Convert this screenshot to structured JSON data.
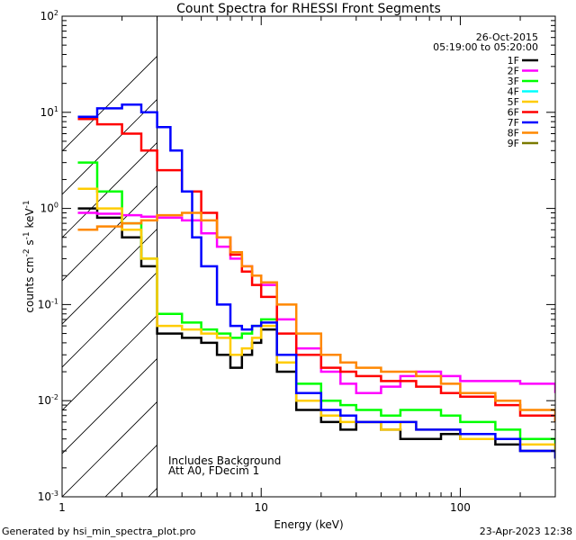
{
  "chart_data": {
    "type": "line",
    "title": "Count Spectra for RHESSI Front Segments",
    "xlabel": "Energy (keV)",
    "ylabel_base": "counts cm",
    "ylabel_exp1": "-2",
    "ylabel_mid": " s",
    "ylabel_exp2": "-1",
    "ylabel_end": " keV",
    "ylabel_exp3": "-1",
    "x_scale": "log",
    "y_scale": "log",
    "xlim": [
      1,
      300
    ],
    "ylim": [
      0.001,
      100
    ],
    "x_ticks": [
      {
        "value": 1,
        "label": "1"
      },
      {
        "value": 10,
        "label": "10"
      },
      {
        "value": 100,
        "label": "100"
      }
    ],
    "y_ticks": [
      {
        "value": 0.001,
        "base": "10",
        "exp": "-3"
      },
      {
        "value": 0.01,
        "base": "10",
        "exp": "-2"
      },
      {
        "value": 0.1,
        "base": "10",
        "exp": "-1"
      },
      {
        "value": 1,
        "base": "10",
        "exp": "0"
      },
      {
        "value": 10,
        "base": "10",
        "exp": "1"
      },
      {
        "value": 100,
        "base": "10",
        "exp": "2"
      }
    ],
    "date": "26-Oct-2015",
    "time_range": "05:19:00 to 05:20:00",
    "hatched_region_max_keV": 3,
    "annotations": [
      "Includes Background",
      "Att A0, FDecim 1"
    ],
    "series": [
      {
        "name": "1F",
        "color": "#000000",
        "points": [
          [
            1.2,
            1.0
          ],
          [
            1.5,
            0.8
          ],
          [
            2.0,
            0.5
          ],
          [
            2.5,
            0.25
          ],
          [
            3.0,
            0.05
          ],
          [
            4.0,
            0.045
          ],
          [
            5.0,
            0.04
          ],
          [
            6.0,
            0.03
          ],
          [
            7.0,
            0.022
          ],
          [
            8.0,
            0.03
          ],
          [
            9.0,
            0.04
          ],
          [
            10.0,
            0.055
          ],
          [
            12.0,
            0.02
          ],
          [
            15.0,
            0.008
          ],
          [
            20.0,
            0.006
          ],
          [
            25.0,
            0.005
          ],
          [
            30.0,
            0.006
          ],
          [
            40.0,
            0.005
          ],
          [
            50.0,
            0.004
          ],
          [
            60.0,
            0.004
          ],
          [
            80.0,
            0.0045
          ],
          [
            100.0,
            0.004
          ],
          [
            150.0,
            0.0035
          ],
          [
            200.0,
            0.003
          ],
          [
            300.0,
            0.0025
          ]
        ]
      },
      {
        "name": "2F",
        "color": "#ff00ff",
        "points": [
          [
            1.2,
            0.9
          ],
          [
            1.5,
            0.88
          ],
          [
            2.0,
            0.85
          ],
          [
            2.5,
            0.82
          ],
          [
            3.0,
            0.8
          ],
          [
            4.0,
            0.75
          ],
          [
            5.0,
            0.55
          ],
          [
            6.0,
            0.4
          ],
          [
            7.0,
            0.3
          ],
          [
            8.0,
            0.25
          ],
          [
            9.0,
            0.2
          ],
          [
            10.0,
            0.16
          ],
          [
            12.0,
            0.07
          ],
          [
            15.0,
            0.035
          ],
          [
            20.0,
            0.02
          ],
          [
            25.0,
            0.015
          ],
          [
            30.0,
            0.012
          ],
          [
            40.0,
            0.014
          ],
          [
            50.0,
            0.018
          ],
          [
            60.0,
            0.02
          ],
          [
            80.0,
            0.018
          ],
          [
            100.0,
            0.016
          ],
          [
            150.0,
            0.016
          ],
          [
            200.0,
            0.015
          ],
          [
            300.0,
            0.012
          ]
        ]
      },
      {
        "name": "3F",
        "color": "#00ff00",
        "points": [
          [
            1.2,
            3.0
          ],
          [
            1.5,
            1.5
          ],
          [
            2.0,
            0.7
          ],
          [
            2.5,
            0.3
          ],
          [
            3.0,
            0.08
          ],
          [
            4.0,
            0.065
          ],
          [
            5.0,
            0.055
          ],
          [
            6.0,
            0.05
          ],
          [
            7.0,
            0.045
          ],
          [
            8.0,
            0.05
          ],
          [
            9.0,
            0.06
          ],
          [
            10.0,
            0.07
          ],
          [
            12.0,
            0.03
          ],
          [
            15.0,
            0.015
          ],
          [
            20.0,
            0.01
          ],
          [
            25.0,
            0.009
          ],
          [
            30.0,
            0.008
          ],
          [
            40.0,
            0.007
          ],
          [
            50.0,
            0.008
          ],
          [
            60.0,
            0.008
          ],
          [
            80.0,
            0.007
          ],
          [
            100.0,
            0.006
          ],
          [
            150.0,
            0.005
          ],
          [
            200.0,
            0.004
          ],
          [
            300.0,
            0.003
          ]
        ]
      },
      {
        "name": "4F",
        "color": "#00ffff",
        "points": []
      },
      {
        "name": "5F",
        "color": "#ffcc00",
        "points": [
          [
            1.2,
            1.6
          ],
          [
            1.5,
            1.0
          ],
          [
            2.0,
            0.6
          ],
          [
            2.5,
            0.3
          ],
          [
            3.0,
            0.06
          ],
          [
            4.0,
            0.055
          ],
          [
            5.0,
            0.05
          ],
          [
            6.0,
            0.045
          ],
          [
            7.0,
            0.03
          ],
          [
            8.0,
            0.035
          ],
          [
            9.0,
            0.045
          ],
          [
            10.0,
            0.06
          ],
          [
            12.0,
            0.025
          ],
          [
            15.0,
            0.01
          ],
          [
            20.0,
            0.007
          ],
          [
            25.0,
            0.006
          ],
          [
            30.0,
            0.006
          ],
          [
            40.0,
            0.005
          ],
          [
            50.0,
            0.006
          ],
          [
            60.0,
            0.005
          ],
          [
            80.0,
            0.005
          ],
          [
            100.0,
            0.004
          ],
          [
            150.0,
            0.004
          ],
          [
            200.0,
            0.0035
          ],
          [
            300.0,
            0.003
          ]
        ]
      },
      {
        "name": "6F",
        "color": "#ff0000",
        "points": [
          [
            1.2,
            8.5
          ],
          [
            1.5,
            7.5
          ],
          [
            2.0,
            6.0
          ],
          [
            2.5,
            4.0
          ],
          [
            3.0,
            2.5
          ],
          [
            4.0,
            1.5
          ],
          [
            5.0,
            0.9
          ],
          [
            6.0,
            0.5
          ],
          [
            7.0,
            0.33
          ],
          [
            8.0,
            0.22
          ],
          [
            9.0,
            0.16
          ],
          [
            10.0,
            0.12
          ],
          [
            12.0,
            0.05
          ],
          [
            15.0,
            0.03
          ],
          [
            20.0,
            0.022
          ],
          [
            25.0,
            0.02
          ],
          [
            30.0,
            0.018
          ],
          [
            40.0,
            0.016
          ],
          [
            50.0,
            0.016
          ],
          [
            60.0,
            0.014
          ],
          [
            80.0,
            0.012
          ],
          [
            100.0,
            0.011
          ],
          [
            150.0,
            0.009
          ],
          [
            200.0,
            0.007
          ],
          [
            300.0,
            0.006
          ]
        ]
      },
      {
        "name": "7F",
        "color": "#0000ff",
        "points": [
          [
            1.2,
            9.0
          ],
          [
            1.5,
            11.0
          ],
          [
            2.0,
            12.0
          ],
          [
            2.5,
            10.0
          ],
          [
            3.0,
            7.0
          ],
          [
            3.5,
            4.0
          ],
          [
            4.0,
            1.5
          ],
          [
            4.5,
            0.5
          ],
          [
            5.0,
            0.25
          ],
          [
            6.0,
            0.1
          ],
          [
            7.0,
            0.06
          ],
          [
            8.0,
            0.055
          ],
          [
            9.0,
            0.06
          ],
          [
            10.0,
            0.065
          ],
          [
            12.0,
            0.03
          ],
          [
            15.0,
            0.012
          ],
          [
            20.0,
            0.008
          ],
          [
            25.0,
            0.007
          ],
          [
            30.0,
            0.006
          ],
          [
            40.0,
            0.006
          ],
          [
            50.0,
            0.006
          ],
          [
            60.0,
            0.005
          ],
          [
            80.0,
            0.005
          ],
          [
            100.0,
            0.0045
          ],
          [
            150.0,
            0.004
          ],
          [
            200.0,
            0.003
          ],
          [
            300.0,
            0.0025
          ]
        ]
      },
      {
        "name": "8F",
        "color": "#ff8800",
        "points": [
          [
            1.2,
            0.6
          ],
          [
            1.5,
            0.65
          ],
          [
            2.0,
            0.7
          ],
          [
            2.5,
            0.75
          ],
          [
            3.0,
            0.85
          ],
          [
            4.0,
            0.9
          ],
          [
            5.0,
            0.75
          ],
          [
            6.0,
            0.5
          ],
          [
            7.0,
            0.35
          ],
          [
            8.0,
            0.25
          ],
          [
            9.0,
            0.2
          ],
          [
            10.0,
            0.17
          ],
          [
            12.0,
            0.1
          ],
          [
            15.0,
            0.05
          ],
          [
            20.0,
            0.03
          ],
          [
            25.0,
            0.025
          ],
          [
            30.0,
            0.022
          ],
          [
            40.0,
            0.02
          ],
          [
            50.0,
            0.02
          ],
          [
            60.0,
            0.018
          ],
          [
            80.0,
            0.015
          ],
          [
            100.0,
            0.012
          ],
          [
            150.0,
            0.01
          ],
          [
            200.0,
            0.008
          ],
          [
            300.0,
            0.006
          ]
        ]
      },
      {
        "name": "9F",
        "color": "#7a7a00",
        "points": []
      }
    ]
  },
  "footer": {
    "generated": "Generated by hsi_min_spectra_plot.pro",
    "timestamp": "23-Apr-2023 12:38"
  }
}
